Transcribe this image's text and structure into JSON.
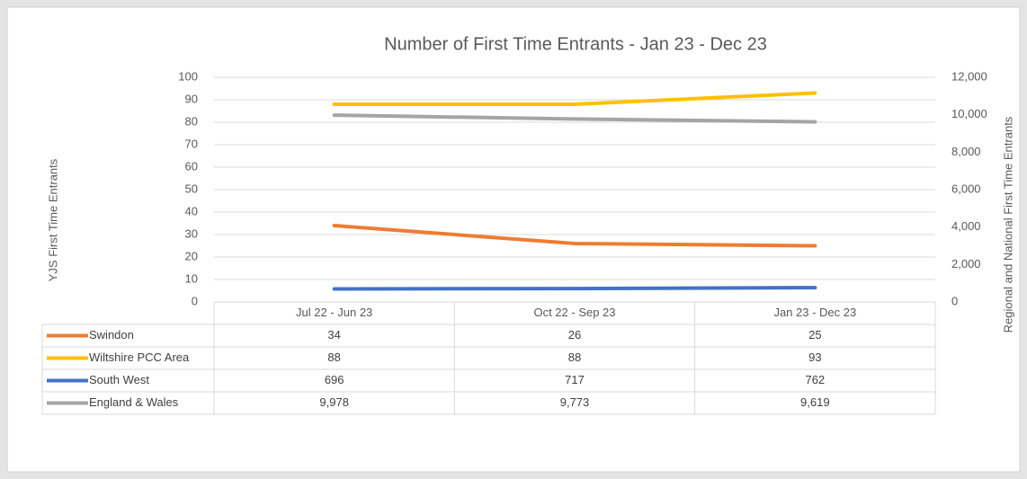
{
  "chart_data": {
    "type": "line",
    "title": "Number of First Time Entrants - Jan 23 - Dec 23",
    "ylabel": "YJS  First Time Entrants",
    "y2label": "Regional and National First Time Entrants",
    "categories": [
      "Jul 22 - Jun 23",
      "Oct 22 - Sep 23",
      "Jan 23 - Dec 23"
    ],
    "series": [
      {
        "name": "Swindon",
        "color": "#ed7d31",
        "values": [
          34,
          26,
          25
        ]
      },
      {
        "name": "Wiltshire PCC Area",
        "color": "#ffc000",
        "values": [
          88,
          88,
          93
        ]
      },
      {
        "name": "South West",
        "color": "#4472c4",
        "axis": "y2",
        "values": [
          696,
          717,
          762
        ]
      },
      {
        "name": "England & Wales",
        "color": "#a5a5a5",
        "axis": "y2",
        "values": [
          9978,
          9773,
          9619
        ],
        "value_labels": [
          "9,978",
          "9,773",
          "9,619"
        ]
      }
    ],
    "ylim": [
      0,
      100
    ],
    "yticks": [
      0,
      10,
      20,
      30,
      40,
      50,
      60,
      70,
      80,
      90,
      100
    ],
    "y2lim": [
      0,
      12000
    ],
    "y2ticks": [
      0,
      {
        "value": 2000,
        "label": "2,000"
      },
      {
        "value": 4000,
        "label": "4,000"
      },
      {
        "value": 6000,
        "label": "6,000"
      },
      {
        "value": 8000,
        "label": "8,000"
      },
      {
        "value": 10000,
        "label": "10,000"
      },
      {
        "value": 12000,
        "label": "12,000"
      }
    ],
    "grid": true
  }
}
